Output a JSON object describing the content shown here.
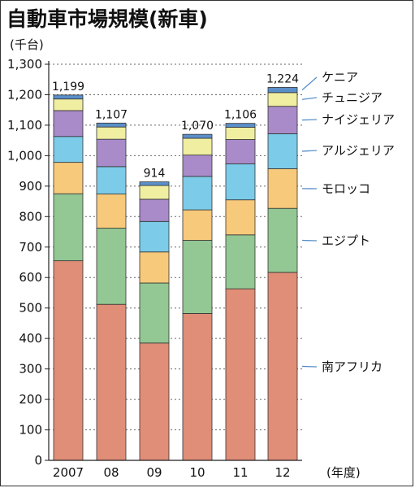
{
  "chart_data": {
    "type": "bar",
    "stacked": true,
    "title": "自動車市場規模(新車)",
    "ylabel": "(千台)",
    "xlabel": "(年度)",
    "ylim": [
      0,
      1300
    ],
    "yticks": [
      "0",
      "100",
      "200",
      "300",
      "400",
      "500",
      "600",
      "700",
      "800",
      "900",
      "1,000",
      "1,100",
      "1,200",
      "1,300"
    ],
    "ytick_values": [
      0,
      100,
      200,
      300,
      400,
      500,
      600,
      700,
      800,
      900,
      1000,
      1100,
      1200,
      1300
    ],
    "categories": [
      "2007",
      "08",
      "09",
      "10",
      "11",
      "12"
    ],
    "totals": [
      1199,
      1107,
      914,
      1070,
      1106,
      1224
    ],
    "total_labels": [
      "1,199",
      "1,107",
      "914",
      "1,070",
      "1,106",
      "1,224"
    ],
    "grid": "dotted-horizontal",
    "legend_position": "right",
    "series": [
      {
        "name": "南アフリカ",
        "color": "#e08e78",
        "values": [
          655,
          512,
          385,
          482,
          563,
          617
        ]
      },
      {
        "name": "エジプト",
        "color": "#93c793",
        "values": [
          220,
          250,
          197,
          240,
          177,
          210
        ]
      },
      {
        "name": "モロッコ",
        "color": "#f7c97b",
        "values": [
          103,
          112,
          102,
          100,
          115,
          130
        ]
      },
      {
        "name": "アルジェリア",
        "color": "#7ccbe8",
        "values": [
          85,
          90,
          100,
          110,
          118,
          115
        ]
      },
      {
        "name": "ナイジェリア",
        "color": "#a98bc9",
        "values": [
          85,
          90,
          73,
          70,
          80,
          90
        ]
      },
      {
        "name": "チュニジア",
        "color": "#f0eea0",
        "values": [
          38,
          40,
          45,
          55,
          40,
          45
        ]
      },
      {
        "name": "ケニア",
        "color": "#5a8fc9",
        "values": [
          13,
          13,
          12,
          13,
          13,
          17
        ]
      }
    ]
  }
}
